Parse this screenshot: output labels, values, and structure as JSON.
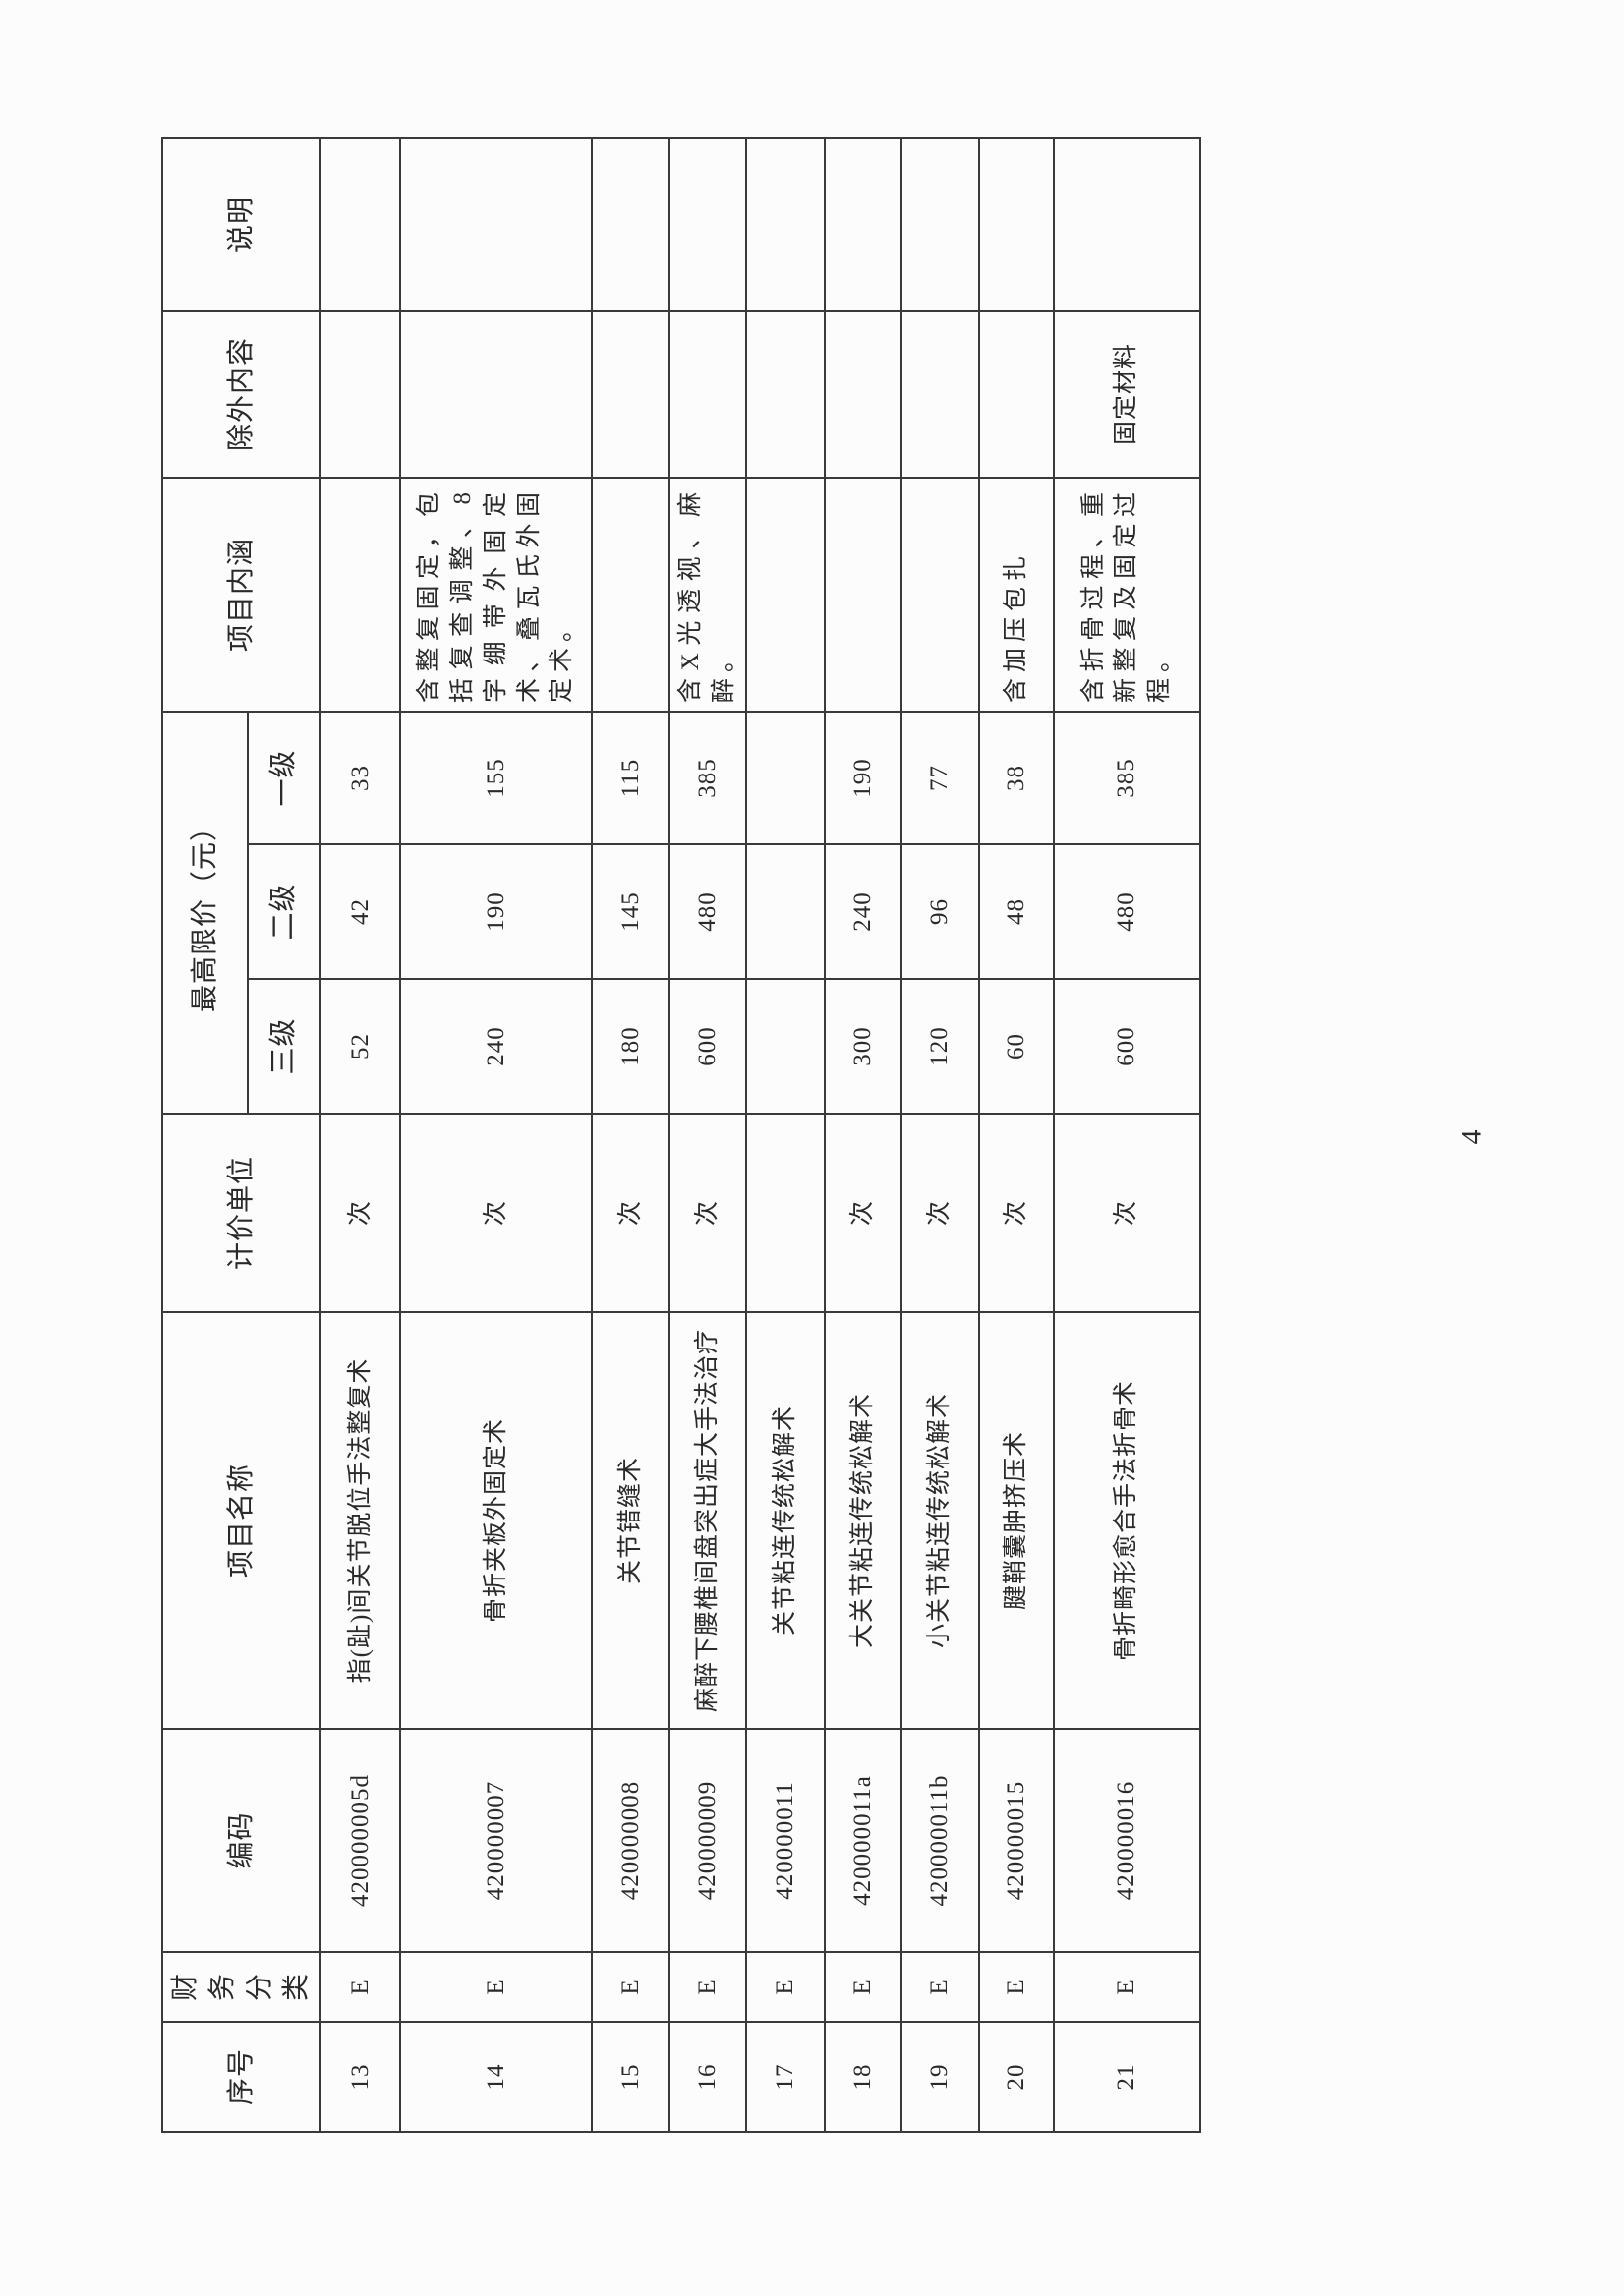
{
  "table": {
    "headers": {
      "seq": "序号",
      "finance": "财务分类",
      "code": "编码",
      "name": "项目名称",
      "unit": "计价单位",
      "price_group": "最高限价（元）",
      "level3": "三级",
      "level2": "二级",
      "level1": "一级",
      "content": "项目内涵",
      "exclude": "除外内容",
      "note": "说明"
    },
    "rows": [
      {
        "seq": "13",
        "finance": "E",
        "code": "420000005d",
        "name": "指(趾)间关节脱位手法整复术",
        "unit": "次",
        "l3": "52",
        "l2": "42",
        "l1": "33",
        "content": "",
        "exclude": "",
        "note": ""
      },
      {
        "seq": "14",
        "finance": "E",
        "code": "420000007",
        "name": "骨折夹板外固定术",
        "unit": "次",
        "l3": "240",
        "l2": "190",
        "l1": "155",
        "content": "含整复固定，包括复查调整、8字绷带外固定术、叠瓦氏外固定术。",
        "exclude": "",
        "note": ""
      },
      {
        "seq": "15",
        "finance": "E",
        "code": "420000008",
        "name": "关节错缝术",
        "unit": "次",
        "l3": "180",
        "l2": "145",
        "l1": "115",
        "content": "",
        "exclude": "",
        "note": ""
      },
      {
        "seq": "16",
        "finance": "E",
        "code": "420000009",
        "name": "麻醉下腰椎间盘突出症大手法治疗",
        "unit": "次",
        "l3": "600",
        "l2": "480",
        "l1": "385",
        "content": "含X光透视、麻醉。",
        "exclude": "",
        "note": ""
      },
      {
        "seq": "17",
        "finance": "E",
        "code": "420000011",
        "name": "关节粘连传统松解术",
        "unit": "",
        "l3": "",
        "l2": "",
        "l1": "",
        "content": "",
        "exclude": "",
        "note": ""
      },
      {
        "seq": "18",
        "finance": "E",
        "code": "420000011a",
        "name": "大关节粘连传统松解术",
        "unit": "次",
        "l3": "300",
        "l2": "240",
        "l1": "190",
        "content": "",
        "exclude": "",
        "note": ""
      },
      {
        "seq": "19",
        "finance": "E",
        "code": "420000011b",
        "name": "小关节粘连传统松解术",
        "unit": "次",
        "l3": "120",
        "l2": "96",
        "l1": "77",
        "content": "",
        "exclude": "",
        "note": ""
      },
      {
        "seq": "20",
        "finance": "E",
        "code": "420000015",
        "name": "腱鞘囊肿挤压术",
        "unit": "次",
        "l3": "60",
        "l2": "48",
        "l1": "38",
        "content": "含加压包扎",
        "exclude": "",
        "note": ""
      },
      {
        "seq": "21",
        "finance": "E",
        "code": "420000016",
        "name": "骨折畸形愈合手法折骨术",
        "unit": "次",
        "l3": "600",
        "l2": "480",
        "l1": "385",
        "content": "含折骨过程、重新整复及固定过程。",
        "exclude": "固定材料",
        "note": ""
      }
    ]
  },
  "page_number": "4"
}
